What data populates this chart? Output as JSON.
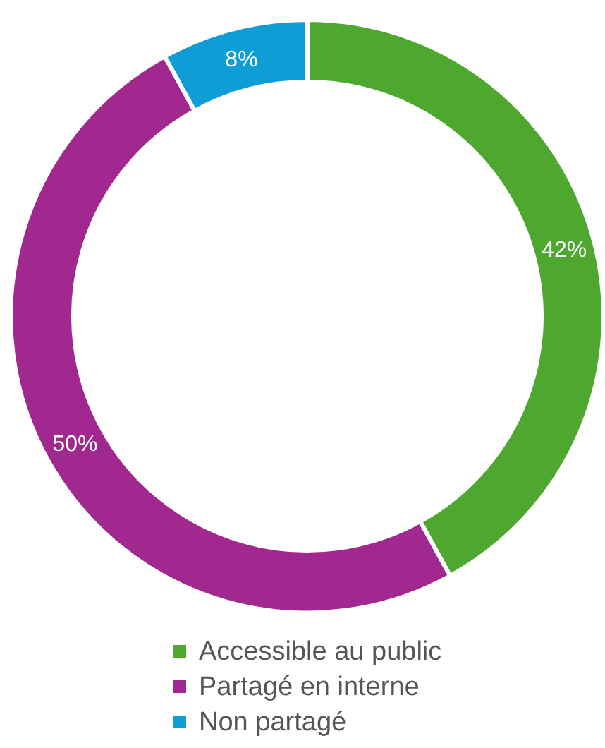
{
  "chart_data": {
    "type": "donut",
    "categories": [
      "Accessible au public",
      "Partagé en interne",
      "Non partagé"
    ],
    "values": [
      42,
      50,
      8
    ],
    "colors": [
      "#4ea72e",
      "#a0288f",
      "#0e9ed5"
    ],
    "value_labels": [
      "42%",
      "50%",
      "8%"
    ],
    "legend": "bottom"
  }
}
